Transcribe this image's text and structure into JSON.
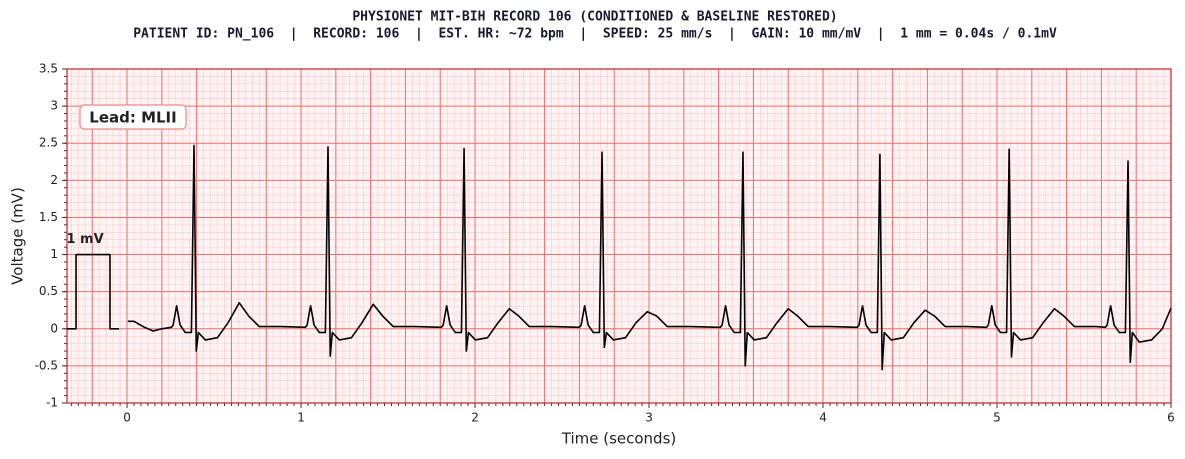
{
  "chart_data": {
    "type": "line",
    "title": "PHYSIONET MIT-BIH RECORD 106 (CONDITIONED & BASELINE RESTORED)",
    "subtitle": "PATIENT ID: PN_106  |  RECORD: 106  |  EST. HR: ~72 bpm  |  SPEED: 25 mm/s  |  GAIN: 10 mm/mV  |  1 mm = 0.04s / 0.1mV",
    "x_label": "Time (seconds)",
    "y_label": "Voltage (mV)",
    "lead_label": "Lead: MLII",
    "calibration_label": "1 mV",
    "xlim": [
      -0.345,
      6
    ],
    "ylim": [
      -1,
      3.5
    ],
    "xticks": [
      0,
      1,
      2,
      3,
      4,
      5,
      6
    ],
    "yticks": [
      -1,
      -0.5,
      0,
      0.5,
      1,
      1.5,
      2,
      2.5,
      3,
      3.5
    ],
    "grid": {
      "major": {
        "x": 0.2,
        "y": 0.5,
        "color": "#e87070"
      },
      "minor": {
        "x": 0.04,
        "y": 0.1,
        "color": "#f9caca"
      }
    },
    "series": [
      {
        "color": "#000000",
        "x": [
          -0.345,
          -0.293,
          -0.293,
          -0.098,
          -0.098,
          -0.046
        ],
        "values": [
          0,
          0,
          1,
          1,
          0,
          0
        ]
      },
      {
        "color": "#000000",
        "x": [
          0.005,
          0.04,
          0.1,
          0.15,
          0.2,
          0.255,
          0.265,
          0.285,
          0.305,
          0.335,
          0.37,
          0.385,
          0.398,
          0.41,
          0.45,
          0.52,
          0.58,
          0.645,
          0.7,
          0.76,
          0.885,
          1.025,
          1.035,
          1.055,
          1.075,
          1.105,
          1.14,
          1.155,
          1.168,
          1.18,
          1.22,
          1.29,
          1.35,
          1.415,
          1.47,
          1.53,
          1.655,
          1.807,
          1.817,
          1.837,
          1.857,
          1.887,
          1.922,
          1.937,
          1.95,
          1.962,
          2.002,
          2.072,
          2.132,
          2.197,
          2.252,
          2.312,
          2.437,
          2.6,
          2.61,
          2.63,
          2.65,
          2.68,
          2.715,
          2.73,
          2.743,
          2.755,
          2.795,
          2.865,
          2.925,
          2.99,
          3.045,
          3.105,
          3.23,
          3.41,
          3.42,
          3.44,
          3.46,
          3.49,
          3.525,
          3.54,
          3.553,
          3.565,
          3.605,
          3.675,
          3.735,
          3.8,
          3.855,
          3.915,
          4.04,
          4.197,
          4.207,
          4.227,
          4.247,
          4.277,
          4.312,
          4.327,
          4.34,
          4.352,
          4.392,
          4.462,
          4.522,
          4.587,
          4.642,
          4.702,
          4.827,
          4.94,
          4.95,
          4.97,
          4.99,
          5.02,
          5.055,
          5.07,
          5.083,
          5.095,
          5.135,
          5.205,
          5.265,
          5.33,
          5.385,
          5.445,
          5.57,
          5.623,
          5.633,
          5.653,
          5.673,
          5.703,
          5.738,
          5.753,
          5.766,
          5.778,
          5.818,
          5.888,
          5.95,
          6.0
        ],
        "values": [
          0.1,
          0.1,
          0.02,
          -0.03,
          0.0,
          0.02,
          0.05,
          0.31,
          0.05,
          -0.05,
          -0.05,
          2.47,
          -0.3,
          -0.05,
          -0.15,
          -0.12,
          0.08,
          0.35,
          0.17,
          0.03,
          0.03,
          0.02,
          0.05,
          0.31,
          0.05,
          -0.05,
          -0.05,
          2.45,
          -0.37,
          -0.05,
          -0.15,
          -0.12,
          0.08,
          0.33,
          0.17,
          0.03,
          0.03,
          0.02,
          0.05,
          0.31,
          0.05,
          -0.05,
          -0.05,
          2.43,
          -0.3,
          -0.05,
          -0.15,
          -0.12,
          0.08,
          0.27,
          0.17,
          0.03,
          0.03,
          0.02,
          0.05,
          0.31,
          0.05,
          -0.05,
          -0.05,
          2.38,
          -0.25,
          -0.05,
          -0.15,
          -0.12,
          0.08,
          0.23,
          0.17,
          0.03,
          0.03,
          0.02,
          0.05,
          0.31,
          0.05,
          -0.05,
          -0.05,
          2.38,
          -0.5,
          -0.05,
          -0.15,
          -0.12,
          0.08,
          0.27,
          0.17,
          0.03,
          0.03,
          0.02,
          0.05,
          0.31,
          0.05,
          -0.05,
          -0.05,
          2.35,
          -0.55,
          -0.05,
          -0.15,
          -0.12,
          0.08,
          0.25,
          0.17,
          0.03,
          0.03,
          0.02,
          0.05,
          0.31,
          0.05,
          -0.05,
          -0.05,
          2.42,
          -0.38,
          -0.05,
          -0.15,
          -0.12,
          0.08,
          0.27,
          0.17,
          0.03,
          0.03,
          0.02,
          0.05,
          0.31,
          0.05,
          -0.05,
          -0.05,
          2.26,
          -0.45,
          -0.05,
          -0.18,
          -0.15,
          0.0,
          0.28
        ]
      }
    ]
  }
}
